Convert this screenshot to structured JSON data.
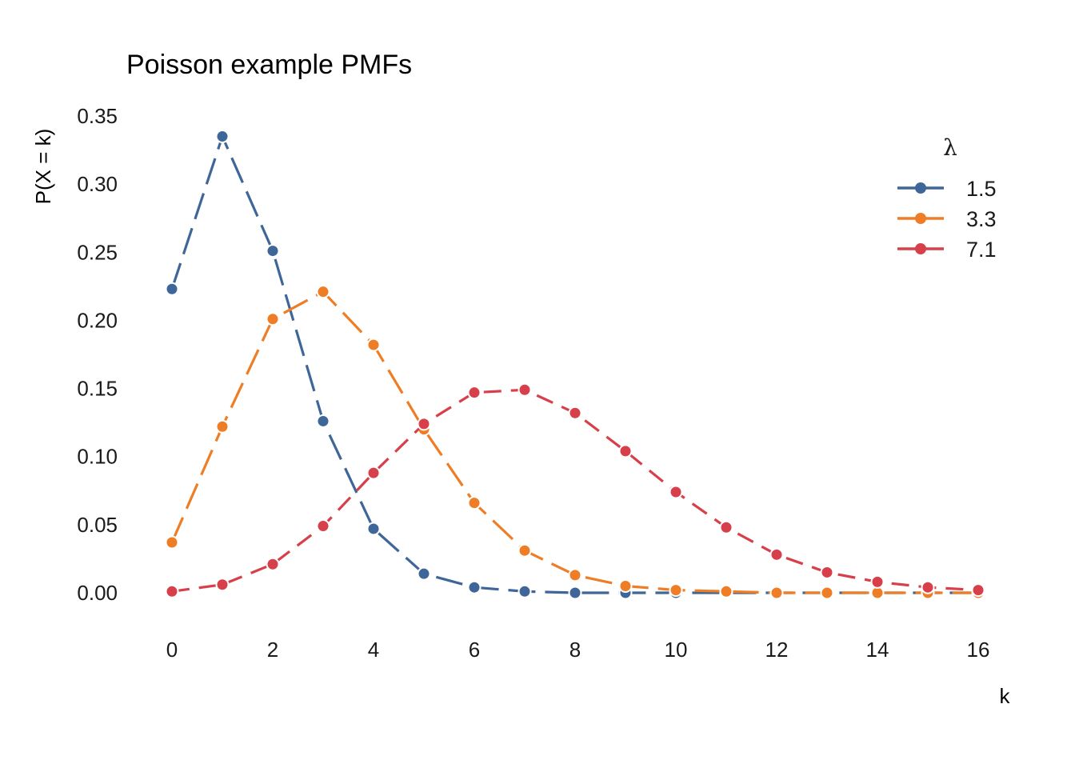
{
  "chart_data": {
    "type": "line",
    "title": "Poisson example PMFs",
    "xlabel": "k",
    "ylabel": "P(X = k)",
    "xlim": [
      0,
      16
    ],
    "ylim": [
      0,
      0.35
    ],
    "x_ticks": [
      "0",
      "2",
      "4",
      "6",
      "8",
      "10",
      "12",
      "14",
      "16"
    ],
    "y_ticks": [
      "0.00",
      "0.05",
      "0.10",
      "0.15",
      "0.20",
      "0.25",
      "0.30",
      "0.35"
    ],
    "grid": false,
    "legend_position": "top-right",
    "legend_title": "λ",
    "x": [
      0,
      1,
      2,
      3,
      4,
      5,
      6,
      7,
      8,
      9,
      10,
      11,
      12,
      13,
      14,
      15,
      16
    ],
    "series": [
      {
        "name": "1.5",
        "color": "#3f6699",
        "line_style": "dashed-long",
        "values": [
          0.223,
          0.335,
          0.251,
          0.126,
          0.047,
          0.014,
          0.004,
          0.001,
          0.0,
          0.0,
          0.0,
          0.0,
          0.0,
          0.0,
          0.0,
          0.0,
          0.0
        ]
      },
      {
        "name": "3.3",
        "color": "#ee7d25",
        "line_style": "dashed-long",
        "values": [
          0.037,
          0.122,
          0.201,
          0.221,
          0.182,
          0.12,
          0.066,
          0.031,
          0.013,
          0.005,
          0.002,
          0.001,
          0.0,
          0.0,
          0.0,
          0.0,
          0.0
        ]
      },
      {
        "name": "7.1",
        "color": "#d7404a",
        "line_style": "dashed",
        "values": [
          0.001,
          0.006,
          0.021,
          0.049,
          0.088,
          0.124,
          0.147,
          0.149,
          0.132,
          0.104,
          0.074,
          0.048,
          0.028,
          0.015,
          0.008,
          0.004,
          0.002
        ]
      }
    ]
  }
}
